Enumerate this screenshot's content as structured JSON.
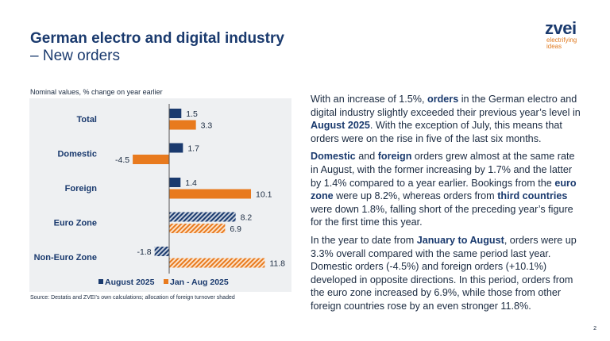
{
  "header": {
    "title_line1": "German electro and digital industry",
    "title_line2": "– New orders"
  },
  "logo": {
    "name": "zvei",
    "tagline1": "electrifying",
    "tagline2": "ideas"
  },
  "chart_data": {
    "type": "bar",
    "orientation": "horizontal",
    "subtitle": "Nominal values, % change on year earlier",
    "categories": [
      "Total",
      "Domestic",
      "Foreign",
      "Euro Zone",
      "Non-Euro Zone"
    ],
    "series": [
      {
        "name": "August 2025",
        "values": [
          1.5,
          1.7,
          1.4,
          8.2,
          -1.8
        ],
        "color": "#1a3a6e",
        "shaded": [
          false,
          false,
          false,
          true,
          true
        ]
      },
      {
        "name": "Jan - Aug 2025",
        "values": [
          3.3,
          -4.5,
          10.1,
          6.9,
          11.8
        ],
        "color": "#e87a1e",
        "shaded": [
          false,
          false,
          false,
          true,
          true
        ]
      }
    ],
    "legend": "bottom",
    "grid": false,
    "source": "Source: Destatis and ZVEI's own calculations; allocation of foreign turnover shaded"
  },
  "body": {
    "p1": [
      "With an increase of 1.5%, ",
      "orders",
      " in the German electro and digital industry slightly exceeded their previous year’s level in ",
      "August 2025",
      ". With the exception of July, this means that orders were on the rise in five of the last six months."
    ],
    "p2": [
      "Domestic",
      " and ",
      "foreign",
      " orders grew almost at the same rate in August, with the former increasing by 1.7% and the latter by 1.4% compared to a year earlier. Bookings from the ",
      "euro zone",
      " were up 8.2%, whereas orders from ",
      "third countries",
      " were down 1.8%, falling short of the preceding year’s figure for the first time this year."
    ],
    "p3": [
      "In the year to date from ",
      "January to August",
      ", orders were up 3.3% overall compared with the same period last year. Domestic orders (-4.5%) and foreign orders (+10.1%) developed in opposite directions. In this period, orders from the euro zone increased by 6.9%, while those from other foreign countries rose by an even stronger 11.8%."
    ]
  },
  "page_number": "2"
}
